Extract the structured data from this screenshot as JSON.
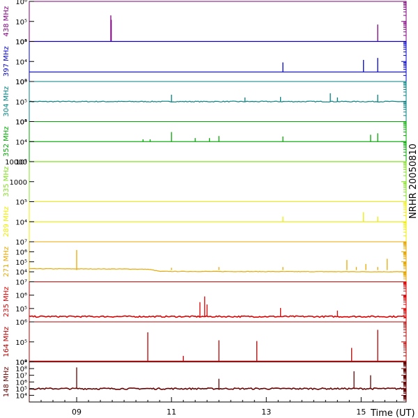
{
  "chart_data": {
    "type": "line",
    "title": "NRHR 20050810",
    "xlabel": "Time (UT)",
    "x_ticks": [
      "09",
      "11",
      "13",
      "15"
    ],
    "x_tick_values": [
      9,
      11,
      13,
      15
    ],
    "xlim": [
      8.0,
      15.95
    ],
    "series": [
      {
        "name": "438 MHz",
        "color": "#800080",
        "ylim": [
          10000.0,
          1000000.0
        ],
        "yticks": [
          {
            "v": 10000.0,
            "t": "10⁴"
          },
          {
            "v": 100000.0,
            "t": "10⁵"
          },
          {
            "v": 1000000.0,
            "t": "10⁶"
          }
        ],
        "baseline": 10000.0,
        "noise": 0,
        "wander": [],
        "spikes": [
          [
            9.72,
            200000.0
          ],
          [
            9.73,
            120000.0
          ],
          [
            15.35,
            70000.0
          ]
        ]
      },
      {
        "name": "397 MHz",
        "color": "#0000cc",
        "ylim": [
          1000.0,
          100000.0
        ],
        "yticks": [
          {
            "v": 1000.0,
            "t": "10³"
          },
          {
            "v": 10000.0,
            "t": "10⁴"
          },
          {
            "v": 100000.0,
            "t": "10⁵"
          }
        ],
        "baseline": 3000.0,
        "noise": 0,
        "wander": [],
        "spikes": [
          [
            13.35,
            9000.0
          ],
          [
            15.05,
            12000.0
          ],
          [
            15.35,
            15000.0
          ]
        ]
      },
      {
        "name": "304 MHz",
        "color": "#008080",
        "ylim": [
          10000.0,
          1000000.0
        ],
        "yticks": [
          {
            "v": 10000.0,
            "t": "10⁴"
          },
          {
            "v": 100000.0,
            "t": "10⁵"
          },
          {
            "v": 1000000.0,
            "t": "10⁶"
          }
        ],
        "baseline": 100000.0,
        "noise": 0.05,
        "wander": [],
        "spikes": [
          [
            11.0,
            220000.0
          ],
          [
            12.55,
            160000.0
          ],
          [
            13.3,
            170000.0
          ],
          [
            14.35,
            260000.0
          ],
          [
            14.5,
            160000.0
          ],
          [
            15.35,
            220000.0
          ]
        ]
      },
      {
        "name": "352 MHz",
        "color": "#00aa00",
        "ylim": [
          1000.0,
          100000.0
        ],
        "yticks": [
          {
            "v": 1000.0,
            "t": "10³"
          },
          {
            "v": 10000.0,
            "t": "10⁴"
          },
          {
            "v": 100000.0,
            "t": "10⁵"
          }
        ],
        "baseline": 10000.0,
        "noise": 0,
        "wander": [],
        "spikes": [
          [
            10.4,
            13000.0
          ],
          [
            10.55,
            13000.0
          ],
          [
            11.0,
            30000.0
          ],
          [
            11.5,
            15000.0
          ],
          [
            11.8,
            15000.0
          ],
          [
            12.0,
            19000.0
          ],
          [
            13.35,
            18000.0
          ],
          [
            15.2,
            22000.0
          ],
          [
            15.35,
            26000.0
          ]
        ]
      },
      {
        "name": "335 MHz",
        "color": "#80e020",
        "ylim": [
          100,
          10000
        ],
        "yticks": [
          {
            "v": 1000,
            "t": "1000"
          },
          {
            "v": 10000,
            "t": "10000"
          }
        ],
        "baseline": 10000,
        "noise": 0,
        "wander": [],
        "spikes": []
      },
      {
        "name": "289 MHz",
        "color": "#eeee00",
        "ylim": [
          1000.0,
          100000.0
        ],
        "yticks": [
          {
            "v": 10000.0,
            "t": "10⁴"
          },
          {
            "v": 100000.0,
            "t": "10⁵"
          }
        ],
        "baseline": 10000.0,
        "noise": 0,
        "wander": [],
        "spikes": [
          [
            13.35,
            18000.0
          ],
          [
            15.05,
            30000.0
          ],
          [
            15.35,
            18000.0
          ]
        ]
      },
      {
        "name": "271 MHz",
        "color": "#e8a800",
        "ylim": [
          1000.0,
          10000000.0
        ],
        "yticks": [
          {
            "v": 10000.0,
            "t": "10⁴"
          },
          {
            "v": 100000.0,
            "t": "10⁵"
          },
          {
            "v": 1000000.0,
            "t": "10⁶"
          },
          {
            "v": 10000000.0,
            "t": "10⁷"
          }
        ],
        "baseline": 15000.0,
        "noise": 0.05,
        "wander": [
          [
            8.0,
            20000.0
          ],
          [
            10.0,
            19000.0
          ],
          [
            10.5,
            18000.0
          ],
          [
            10.75,
            11000.0
          ],
          [
            16.0,
            10000.0
          ]
        ],
        "spikes": [
          [
            9.0,
            1500000.0
          ],
          [
            11.0,
            25000.0
          ],
          [
            12.0,
            30000.0
          ],
          [
            13.35,
            30000.0
          ],
          [
            14.7,
            150000.0
          ],
          [
            14.9,
            30000.0
          ],
          [
            15.1,
            60000.0
          ],
          [
            15.35,
            30000.0
          ],
          [
            15.55,
            200000.0
          ]
        ]
      },
      {
        "name": "235 MHz",
        "color": "#dd0000",
        "ylim": [
          10000.0,
          10000000.0
        ],
        "yticks": [
          {
            "v": 100000.0,
            "t": "10⁵"
          },
          {
            "v": 1000000.0,
            "t": "10⁶"
          },
          {
            "v": 10000000.0,
            "t": "10⁷"
          }
        ],
        "baseline": 25000.0,
        "noise": 0.12,
        "wander": [],
        "spikes": [
          [
            11.6,
            300000.0
          ],
          [
            11.7,
            800000.0
          ],
          [
            11.75,
            200000.0
          ],
          [
            13.3,
            110000.0
          ],
          [
            14.5,
            70000.0
          ]
        ]
      },
      {
        "name": "164 MHz",
        "color": "#b80000",
        "ylim": [
          10000.0,
          1000000.0
        ],
        "yticks": [
          {
            "v": 10000.0,
            "t": "10⁴"
          },
          {
            "v": 100000.0,
            "t": "10⁵"
          },
          {
            "v": 1000000.0,
            "t": "10⁶"
          }
        ],
        "baseline": 11000.0,
        "noise": 0,
        "wander": [],
        "spikes": [
          [
            10.5,
            300000.0
          ],
          [
            11.25,
            20000.0
          ],
          [
            12.0,
            120000.0
          ],
          [
            12.8,
            110000.0
          ],
          [
            14.8,
            50000.0
          ],
          [
            15.35,
            400000.0
          ]
        ]
      },
      {
        "name": "148 MHz",
        "color": "#660000",
        "ylim": [
          1000.0,
          1000000000.0
        ],
        "yticks": [
          {
            "v": 10000.0,
            "t": "10⁴"
          },
          {
            "v": 100000.0,
            "t": "10⁵"
          },
          {
            "v": 1000000.0,
            "t": "10⁶"
          },
          {
            "v": 10000000.0,
            "t": "10⁷"
          },
          {
            "v": 100000000.0,
            "t": "10⁸"
          },
          {
            "v": 1000000000.0,
            "t": "10⁹"
          }
        ],
        "baseline": 100000.0,
        "noise": 0.25,
        "wander": [],
        "spikes": [
          [
            9.0,
            150000000.0
          ],
          [
            12.0,
            3000000.0
          ],
          [
            14.85,
            40000000.0
          ],
          [
            15.2,
            10000000.0
          ]
        ]
      }
    ]
  }
}
